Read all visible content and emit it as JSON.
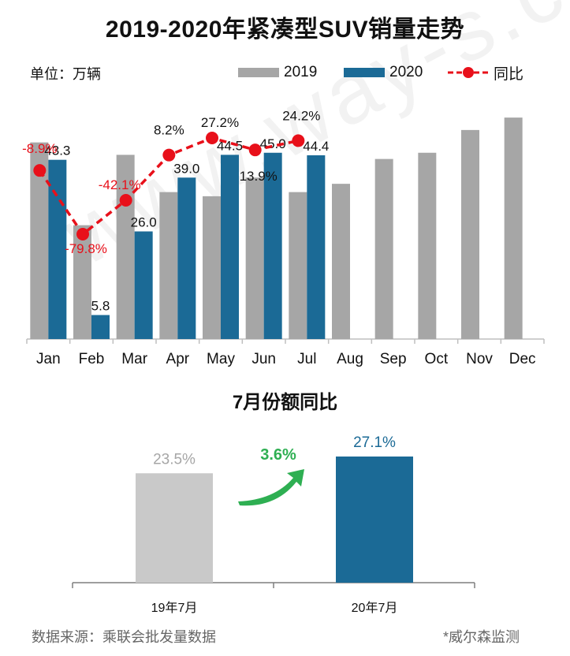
{
  "title": "2019-2020年紧凑型SUV销量走势",
  "unit_label": "单位：万辆",
  "legend": {
    "series_2019": "2019",
    "series_2020": "2020",
    "yoy": "同比"
  },
  "colors": {
    "series_2019": "#a6a6a6",
    "series_2020": "#1b6a96",
    "yoy": "#e8101a",
    "share_2019": "#c9c9c9",
    "share_2020": "#1b6a96",
    "arrow": "#2eaf52"
  },
  "chart_data": [
    {
      "type": "bar",
      "categories": [
        "Jan",
        "Feb",
        "Mar",
        "Apr",
        "May",
        "Jun",
        "Jul",
        "Aug",
        "Sep",
        "Oct",
        "Nov",
        "Dec"
      ],
      "series": [
        {
          "name": "2019",
          "values": [
            47.5,
            27.5,
            44.5,
            35.5,
            34.5,
            39.0,
            35.5,
            37.5,
            43.5,
            45.0,
            50.5,
            53.5
          ]
        },
        {
          "name": "2020",
          "values": [
            43.3,
            5.8,
            26.0,
            39.0,
            44.5,
            45.0,
            44.4,
            null,
            null,
            null,
            null,
            null
          ]
        }
      ],
      "data_labels_2020": [
        "43.3",
        "5.8",
        "26.0",
        "39.0",
        "44.5",
        "45.0",
        "44.4"
      ],
      "line_series": {
        "name": "同比",
        "unit": "%",
        "values": [
          -8.9,
          -79.8,
          -42.1,
          8.2,
          27.2,
          13.9,
          24.2
        ],
        "labels": [
          "-8.9%",
          "-79.8%",
          "-42.1%",
          "8.2%",
          "27.2%",
          "13.9%",
          "24.2%"
        ]
      },
      "ylim": [
        0,
        60
      ],
      "line_ylim": [
        -100,
        50
      ],
      "grid": false,
      "legend_position": "top-right"
    },
    {
      "type": "bar",
      "title": "7月份额同比",
      "categories": [
        "19年7月",
        "20年7月"
      ],
      "values": [
        23.5,
        27.1
      ],
      "value_labels": [
        "23.5%",
        "27.1%"
      ],
      "change_label": "3.6%",
      "ylim": [
        0,
        30
      ]
    }
  ],
  "source": "数据来源：乘联会批发量数据",
  "credit": "*威尔森监测",
  "watermark": "www.way-s.cn"
}
